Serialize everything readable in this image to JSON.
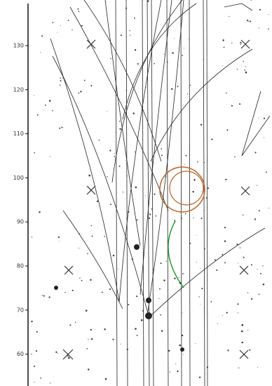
{
  "axis": {
    "ticks": [
      130,
      120,
      110,
      100,
      90,
      80,
      70,
      60
    ]
  }
}
